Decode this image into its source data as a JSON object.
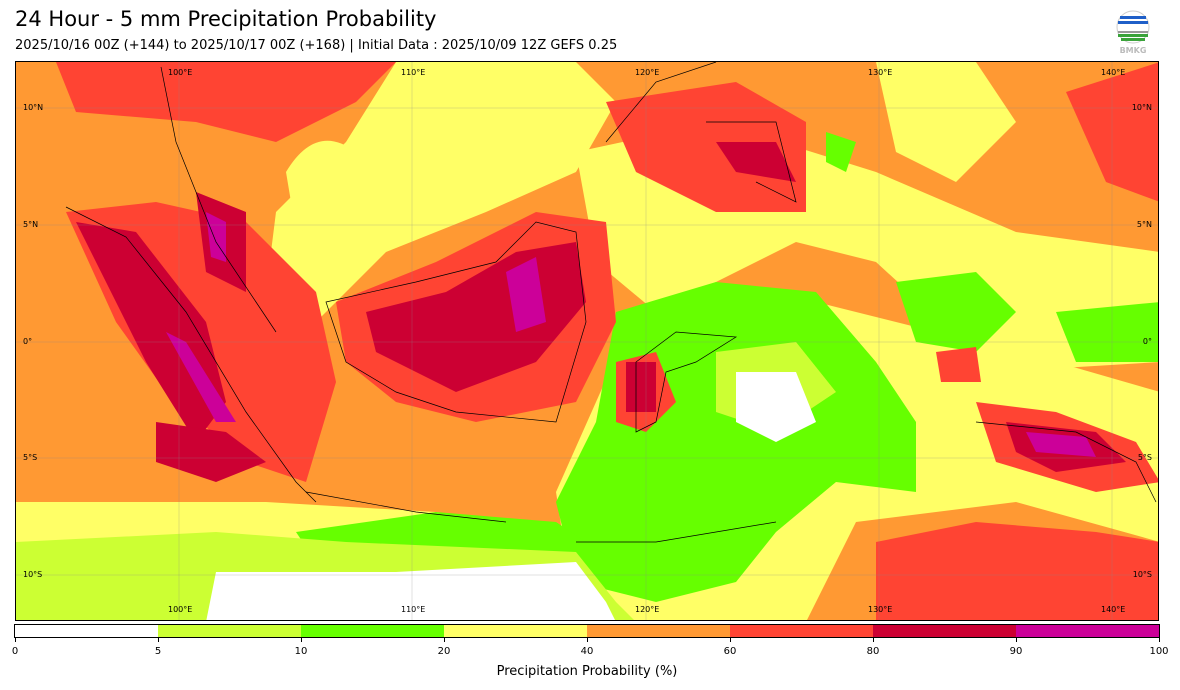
{
  "title": "24 Hour - 5 mm Precipitation Probability",
  "subtitle": "2025/10/16 00Z (+144) to 2025/10/17 00Z (+168) | Initial Data : 2025/10/09 12Z GEFS 0.25",
  "logo_text": "BMKG",
  "map": {
    "lon_labels": [
      "100°E",
      "110°E",
      "120°E",
      "130°E",
      "140°E"
    ],
    "lat_labels": [
      "10°N",
      "5°N",
      "0°",
      "5°S",
      "10°S"
    ]
  },
  "colorbar": {
    "label": "Precipitation Probability (%)",
    "ticks": [
      "0",
      "5",
      "10",
      "20",
      "40",
      "60",
      "80",
      "90",
      "100"
    ],
    "bins": [
      {
        "from": 0,
        "to": 5,
        "color": "#ffffff"
      },
      {
        "from": 5,
        "to": 10,
        "color": "#ccff33"
      },
      {
        "from": 10,
        "to": 20,
        "color": "#66ff00"
      },
      {
        "from": 20,
        "to": 40,
        "color": "#ffff66"
      },
      {
        "from": 40,
        "to": 60,
        "color": "#ff9933"
      },
      {
        "from": 60,
        "to": 80,
        "color": "#ff4433"
      },
      {
        "from": 80,
        "to": 90,
        "color": "#cc0033"
      },
      {
        "from": 90,
        "to": 100,
        "color": "#cc0099"
      }
    ]
  }
}
